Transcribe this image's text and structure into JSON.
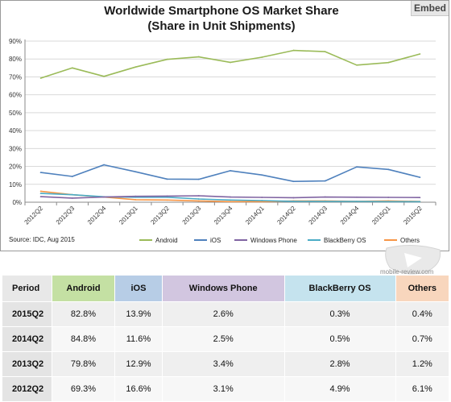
{
  "embed_label": "Embed",
  "source_note": "Source: IDC, Aug 2015",
  "watermark_text": "mobile-review.com",
  "colors": {
    "android": "#9bbb59",
    "ios": "#4f81bd",
    "windows_phone": "#8064a2",
    "blackberry": "#4bacc6",
    "others": "#f79646",
    "grid": "#d9d9d9",
    "axis_text": "#333333"
  },
  "chart_data": {
    "type": "line",
    "title": [
      "Worldwide Smartphone OS Market Share",
      "(Share in Unit Shipments)"
    ],
    "xlabel": "",
    "ylabel": "",
    "ylim": [
      0,
      90
    ],
    "yticks": [
      "0%",
      "10%",
      "20%",
      "30%",
      "40%",
      "50%",
      "60%",
      "70%",
      "80%",
      "90%"
    ],
    "grid": true,
    "legend_position": "bottom",
    "categories": [
      "2012Q2",
      "2012Q3",
      "2012Q4",
      "2013Q1",
      "2013Q2",
      "2013Q3",
      "2013Q4",
      "2014Q1",
      "2014Q2",
      "2014Q3",
      "2014Q4",
      "2015Q1",
      "2015Q2"
    ],
    "series": [
      {
        "name": "Android",
        "key": "android",
        "values": [
          69.3,
          75.0,
          70.3,
          75.5,
          79.8,
          81.2,
          78.1,
          81.0,
          84.8,
          84.1,
          76.6,
          78.0,
          82.8
        ]
      },
      {
        "name": "iOS",
        "key": "ios",
        "values": [
          16.6,
          14.4,
          20.9,
          17.0,
          12.9,
          12.8,
          17.6,
          15.2,
          11.6,
          11.9,
          19.7,
          18.3,
          13.9
        ]
      },
      {
        "name": "Windows Phone",
        "key": "windows_phone",
        "values": [
          3.1,
          2.3,
          2.9,
          3.3,
          3.4,
          3.6,
          2.9,
          2.7,
          2.5,
          2.9,
          2.8,
          2.7,
          2.6
        ]
      },
      {
        "name": "BlackBerry OS",
        "key": "blackberry",
        "values": [
          4.9,
          4.2,
          3.0,
          2.8,
          2.8,
          1.8,
          1.2,
          0.9,
          0.5,
          0.4,
          0.4,
          0.3,
          0.3
        ]
      },
      {
        "name": "Others",
        "key": "others",
        "values": [
          6.1,
          4.2,
          2.9,
          1.4,
          1.2,
          0.7,
          0.3,
          0.3,
          0.7,
          0.7,
          0.5,
          0.7,
          0.4
        ]
      }
    ]
  },
  "table": {
    "headers": [
      {
        "label": "Period",
        "bg": "#e8e8e8"
      },
      {
        "label": "Android",
        "bg": "#c4e0a3"
      },
      {
        "label": "iOS",
        "bg": "#b7cde6"
      },
      {
        "label": "Windows Phone",
        "bg": "#d2c6e0"
      },
      {
        "label": "BlackBerry OS",
        "bg": "#c5e3ee"
      },
      {
        "label": "Others",
        "bg": "#f8d6bd"
      }
    ],
    "rows": [
      {
        "period": "2015Q2",
        "cells": [
          "82.8%",
          "13.9%",
          "2.6%",
          "0.3%",
          "0.4%"
        ]
      },
      {
        "period": "2014Q2",
        "cells": [
          "84.8%",
          "11.6%",
          "2.5%",
          "0.5%",
          "0.7%"
        ]
      },
      {
        "period": "2013Q2",
        "cells": [
          "79.8%",
          "12.9%",
          "3.4%",
          "2.8%",
          "1.2%"
        ]
      },
      {
        "period": "2012Q2",
        "cells": [
          "69.3%",
          "16.6%",
          "3.1%",
          "4.9%",
          "6.1%"
        ]
      }
    ]
  }
}
